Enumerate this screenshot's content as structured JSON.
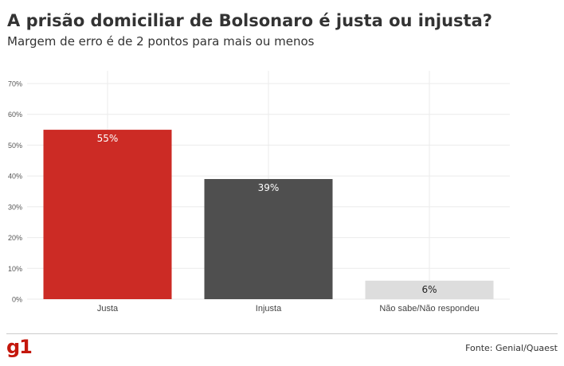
{
  "header": {
    "title": "A prisão domiciliar de Bolsonaro é justa ou injusta?",
    "subtitle": "Margem de erro é de 2 pontos para mais ou menos"
  },
  "footer": {
    "logo_text": "g1",
    "source": "Fonte: Genial/Quaest"
  },
  "chart_data": {
    "type": "bar",
    "title": "A prisão domiciliar de Bolsonaro é justa ou injusta?",
    "subtitle": "Margem de erro é de 2 pontos para mais ou menos",
    "categories": [
      "Justa",
      "Injusta",
      "Não sabe/Não respondeu"
    ],
    "values": [
      55,
      39,
      6
    ],
    "value_labels": [
      "55%",
      "39%",
      "6%"
    ],
    "bar_colors": [
      "#cc2b25",
      "#4f4f4f",
      "#dddddd"
    ],
    "label_colors": [
      "#ffffff",
      "#ffffff",
      "#222222"
    ],
    "ylim": [
      0,
      70
    ],
    "yticks": [
      0,
      10,
      20,
      30,
      40,
      50,
      60,
      70
    ],
    "ytick_labels": [
      "0%",
      "10%",
      "20%",
      "30%",
      "40%",
      "50%",
      "60%",
      "70%"
    ],
    "grid": true,
    "legend": "none"
  }
}
